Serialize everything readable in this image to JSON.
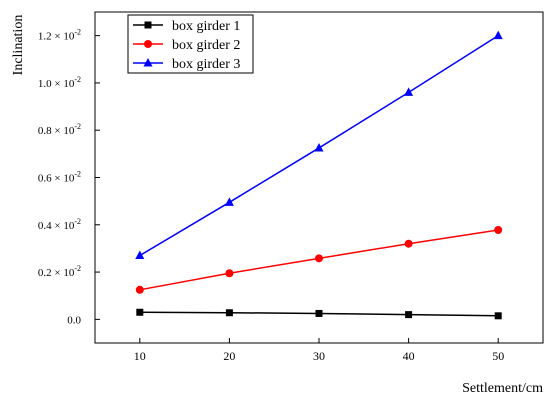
{
  "chart_data": {
    "type": "line",
    "xlabel": "Settlement/cm",
    "ylabel": "Inclination",
    "x": [
      10,
      20,
      30,
      40,
      50
    ],
    "xlim": [
      5,
      55
    ],
    "ylim": [
      -0.001,
      0.013
    ],
    "x_ticks": [
      10,
      20,
      30,
      40,
      50
    ],
    "y_ticks": [
      {
        "value": 0.0,
        "label": "0.0"
      },
      {
        "value": 0.002,
        "label": "0.2 × 10",
        "exp": "-2"
      },
      {
        "value": 0.004,
        "label": "0.4 × 10",
        "exp": "-2"
      },
      {
        "value": 0.006,
        "label": "0.6 × 10",
        "exp": "-2"
      },
      {
        "value": 0.008,
        "label": "0.8 × 10",
        "exp": "-2"
      },
      {
        "value": 0.01,
        "label": "1.0 × 10",
        "exp": "-2"
      },
      {
        "value": 0.012,
        "label": "1.2 × 10",
        "exp": "-2"
      }
    ],
    "grid": false,
    "legend_position": "top-left",
    "series": [
      {
        "name": "box girder 1",
        "color": "#000000",
        "marker": "square",
        "values": [
          0.0003,
          0.00028,
          0.00025,
          0.0002,
          0.00015
        ]
      },
      {
        "name": "box girder 2",
        "color": "#ff0000",
        "marker": "circle",
        "values": [
          0.00125,
          0.00195,
          0.00258,
          0.0032,
          0.00378
        ]
      },
      {
        "name": "box girder 3",
        "color": "#0000ff",
        "marker": "triangle",
        "values": [
          0.0027,
          0.00495,
          0.00725,
          0.0096,
          0.012
        ]
      }
    ]
  }
}
